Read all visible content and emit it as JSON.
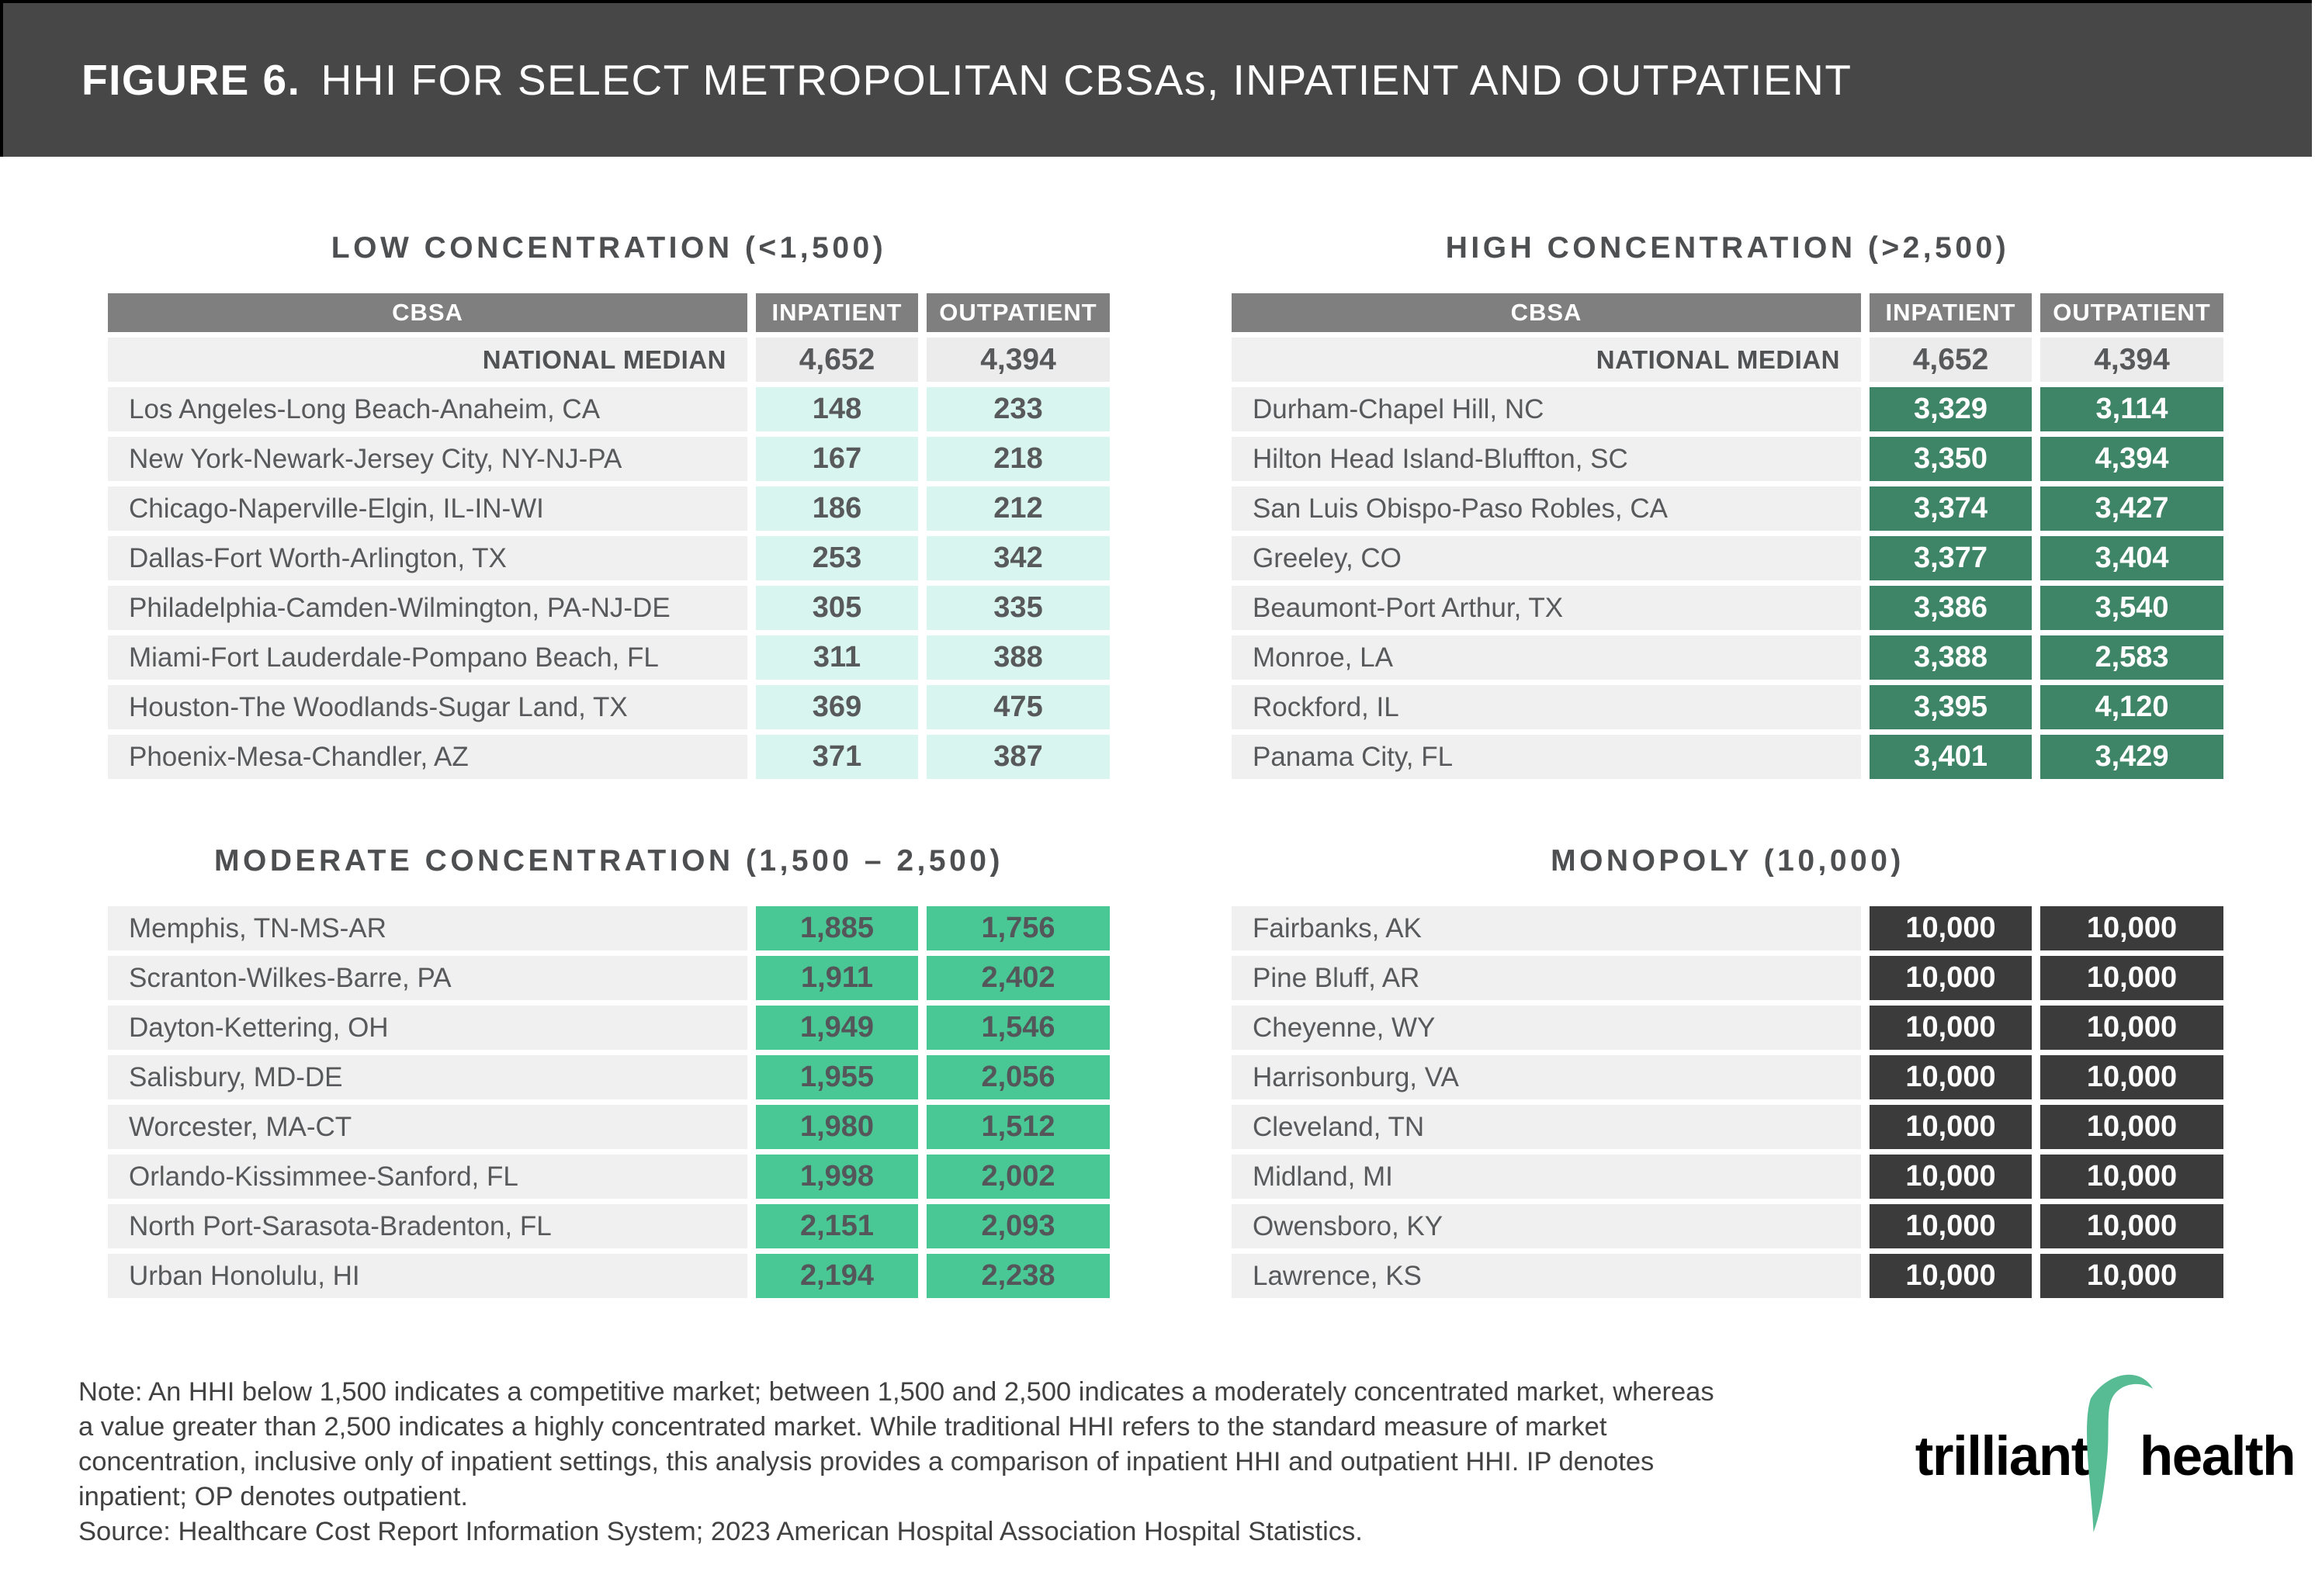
{
  "header": {
    "figure_label": "FIGURE 6.",
    "title": "HHI FOR SELECT METROPOLITAN CBSAs, INPATIENT AND OUTPATIENT"
  },
  "chart_data": {
    "type": "table",
    "tables": [
      {
        "id": "low",
        "title": "LOW CONCENTRATION (<1,500)",
        "columns": [
          "CBSA",
          "INPATIENT",
          "OUTPATIENT"
        ],
        "has_header_row": true,
        "national_median": {
          "label": "NATIONAL MEDIAN",
          "inpatient": 4652,
          "outpatient": 4394
        },
        "rows": [
          {
            "cbsa": "Los Angeles-Long Beach-Anaheim, CA",
            "inpatient": 148,
            "outpatient": 233
          },
          {
            "cbsa": "New York-Newark-Jersey City, NY-NJ-PA",
            "inpatient": 167,
            "outpatient": 218
          },
          {
            "cbsa": "Chicago-Naperville-Elgin, IL-IN-WI",
            "inpatient": 186,
            "outpatient": 212
          },
          {
            "cbsa": "Dallas-Fort Worth-Arlington, TX",
            "inpatient": 253,
            "outpatient": 342
          },
          {
            "cbsa": "Philadelphia-Camden-Wilmington, PA-NJ-DE",
            "inpatient": 305,
            "outpatient": 335
          },
          {
            "cbsa": "Miami-Fort Lauderdale-Pompano Beach, FL",
            "inpatient": 311,
            "outpatient": 388
          },
          {
            "cbsa": "Houston-The Woodlands-Sugar Land, TX",
            "inpatient": 369,
            "outpatient": 475
          },
          {
            "cbsa": "Phoenix-Mesa-Chandler, AZ",
            "inpatient": 371,
            "outpatient": 387
          }
        ]
      },
      {
        "id": "high",
        "title": "HIGH CONCENTRATION (>2,500)",
        "columns": [
          "CBSA",
          "INPATIENT",
          "OUTPATIENT"
        ],
        "has_header_row": true,
        "national_median": {
          "label": "NATIONAL MEDIAN",
          "inpatient": 4652,
          "outpatient": 4394
        },
        "rows": [
          {
            "cbsa": "Durham-Chapel Hill, NC",
            "inpatient": 3329,
            "outpatient": 3114
          },
          {
            "cbsa": "Hilton Head Island-Bluffton, SC",
            "inpatient": 3350,
            "outpatient": 4394
          },
          {
            "cbsa": "San Luis Obispo-Paso Robles, CA",
            "inpatient": 3374,
            "outpatient": 3427
          },
          {
            "cbsa": "Greeley, CO",
            "inpatient": 3377,
            "outpatient": 3404
          },
          {
            "cbsa": "Beaumont-Port Arthur, TX",
            "inpatient": 3386,
            "outpatient": 3540
          },
          {
            "cbsa": "Monroe, LA",
            "inpatient": 3388,
            "outpatient": 2583
          },
          {
            "cbsa": "Rockford, IL",
            "inpatient": 3395,
            "outpatient": 4120
          },
          {
            "cbsa": "Panama City, FL",
            "inpatient": 3401,
            "outpatient": 3429
          }
        ]
      },
      {
        "id": "moderate",
        "title": "MODERATE CONCENTRATION (1,500 – 2,500)",
        "columns": [
          "CBSA",
          "INPATIENT",
          "OUTPATIENT"
        ],
        "has_header_row": false,
        "national_median": null,
        "rows": [
          {
            "cbsa": "Memphis, TN-MS-AR",
            "inpatient": 1885,
            "outpatient": 1756
          },
          {
            "cbsa": "Scranton-Wilkes-Barre, PA",
            "inpatient": 1911,
            "outpatient": 2402
          },
          {
            "cbsa": "Dayton-Kettering, OH",
            "inpatient": 1949,
            "outpatient": 1546
          },
          {
            "cbsa": "Salisbury, MD-DE",
            "inpatient": 1955,
            "outpatient": 2056
          },
          {
            "cbsa": "Worcester, MA-CT",
            "inpatient": 1980,
            "outpatient": 1512
          },
          {
            "cbsa": "Orlando-Kissimmee-Sanford, FL",
            "inpatient": 1998,
            "outpatient": 2002
          },
          {
            "cbsa": "North Port-Sarasota-Bradenton, FL",
            "inpatient": 2151,
            "outpatient": 2093
          },
          {
            "cbsa": "Urban Honolulu, HI",
            "inpatient": 2194,
            "outpatient": 2238
          }
        ]
      },
      {
        "id": "monopoly",
        "title": "MONOPOLY (10,000)",
        "columns": [
          "CBSA",
          "INPATIENT",
          "OUTPATIENT"
        ],
        "has_header_row": false,
        "national_median": null,
        "rows": [
          {
            "cbsa": "Fairbanks, AK",
            "inpatient": 10000,
            "outpatient": 10000
          },
          {
            "cbsa": "Pine Bluff, AR",
            "inpatient": 10000,
            "outpatient": 10000
          },
          {
            "cbsa": "Cheyenne, WY",
            "inpatient": 10000,
            "outpatient": 10000
          },
          {
            "cbsa": "Harrisonburg, VA",
            "inpatient": 10000,
            "outpatient": 10000
          },
          {
            "cbsa": "Cleveland, TN",
            "inpatient": 10000,
            "outpatient": 10000
          },
          {
            "cbsa": "Midland, MI",
            "inpatient": 10000,
            "outpatient": 10000
          },
          {
            "cbsa": "Owensboro, KY",
            "inpatient": 10000,
            "outpatient": 10000
          },
          {
            "cbsa": "Lawrence, KS",
            "inpatient": 10000,
            "outpatient": 10000
          }
        ]
      }
    ]
  },
  "note": {
    "text": "Note: An HHI below 1,500 indicates a competitive market; between 1,500 and 2,500 indicates a moderately concentrated market, whereas\na value greater than 2,500 indicates a highly concentrated market. While traditional HHI refers to the standard measure of market\nconcentration, inclusive only of inpatient settings, this analysis provides a comparison of inpatient HHI and outpatient HHI. IP denotes\ninpatient; OP denotes outpatient.",
    "source": "Source: Healthcare Cost Report Information System; 2023 American Hospital Association Hospital Statistics."
  },
  "logo": {
    "word1": "trilliant",
    "word2": "health"
  },
  "colors": {
    "header_band": "#474747",
    "table_header": "#7F7F7F",
    "row_background": "#F0F0F0",
    "median_value_bg": "#ECECEC",
    "low_value_bg": "#D9F5F0",
    "high_value_bg": "#3E8466",
    "moderate_value_bg": "#49C795",
    "monopoly_value_bg": "#3B3B3B",
    "text": "#58595B",
    "logo_green": "#57BB93"
  }
}
